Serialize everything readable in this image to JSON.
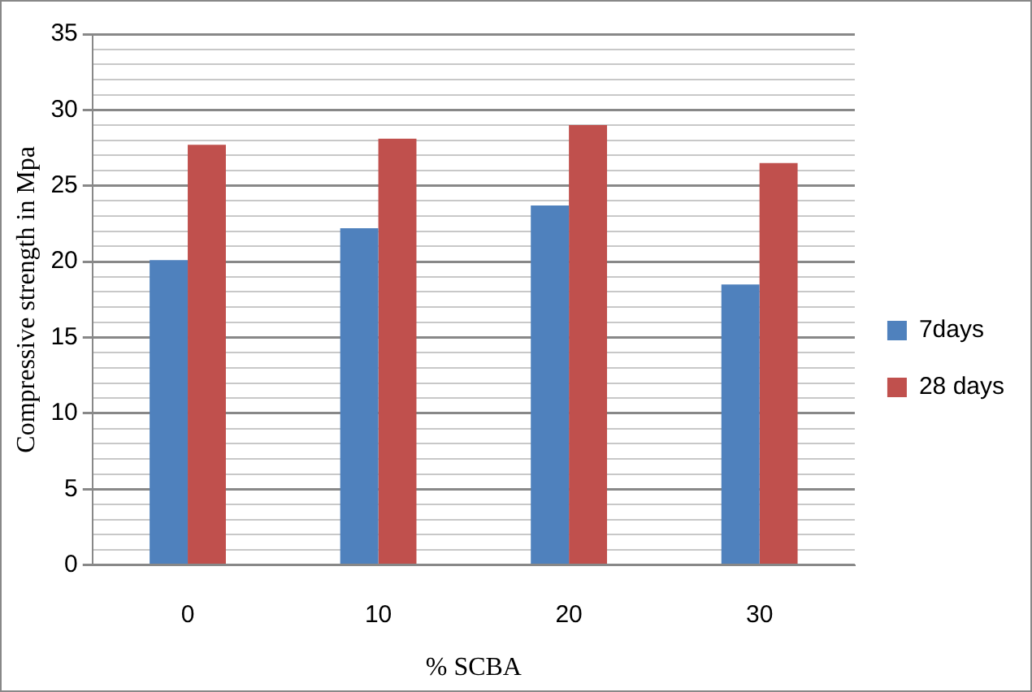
{
  "chart_data": {
    "type": "bar",
    "xlabel": "% SCBA",
    "ylabel": "Compressive strength in Mpa",
    "categories": [
      "0",
      "10",
      "20",
      "30"
    ],
    "series": [
      {
        "name": "7days",
        "color": "#4f81bd",
        "values": [
          20.1,
          22.2,
          23.7,
          18.5
        ]
      },
      {
        "name": "28 days",
        "color": "#c0504d",
        "values": [
          27.7,
          28.1,
          29.0,
          26.5
        ]
      }
    ],
    "ylim": [
      0,
      35
    ],
    "yticks": [
      0,
      {
        "value": 1,
        "label": null
      },
      {
        "value": 2,
        "label": null
      },
      {
        "value": 3,
        "label": null
      },
      {
        "value": 4,
        "label": null
      },
      5,
      {
        "value": 6,
        "label": null
      },
      {
        "value": 7,
        "label": null
      },
      {
        "value": 8,
        "label": null
      },
      {
        "value": 9,
        "label": null
      },
      10,
      {
        "value": 11,
        "label": null
      },
      {
        "value": 12,
        "label": null
      },
      {
        "value": 13,
        "label": null
      },
      {
        "value": 14,
        "label": null
      },
      15,
      {
        "value": 16,
        "label": null
      },
      {
        "value": 17,
        "label": null
      },
      {
        "value": 18,
        "label": null
      },
      {
        "value": 19,
        "label": null
      },
      20,
      {
        "value": 21,
        "label": null
      },
      {
        "value": 22,
        "label": null
      },
      {
        "value": 23,
        "label": null
      },
      {
        "value": 24,
        "label": null
      },
      25,
      {
        "value": 26,
        "label": null
      },
      {
        "value": 27,
        "label": null
      },
      {
        "value": 28,
        "label": null
      },
      {
        "value": 29,
        "label": null
      },
      30,
      {
        "value": 31,
        "label": null
      },
      {
        "value": 32,
        "label": null
      },
      {
        "value": 33,
        "label": null
      },
      {
        "value": 34,
        "label": null
      },
      35
    ],
    "grid": "y",
    "legend": "right"
  }
}
